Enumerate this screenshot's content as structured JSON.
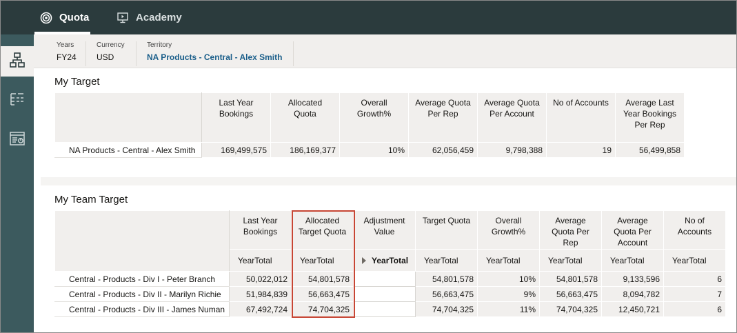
{
  "nav": {
    "tabs": [
      {
        "label": "Quota",
        "icon": "target-icon",
        "active": true
      },
      {
        "label": "Academy",
        "icon": "presentation-icon",
        "active": false
      }
    ]
  },
  "rail": {
    "items": [
      {
        "icon": "hierarchy-icon",
        "selected": true
      },
      {
        "icon": "list-tree-icon",
        "selected": false
      },
      {
        "icon": "report-icon",
        "selected": false
      }
    ]
  },
  "context": {
    "years": {
      "label": "Years",
      "value": "FY24"
    },
    "currency": {
      "label": "Currency",
      "value": "USD"
    },
    "territory": {
      "label": "Territory",
      "value": "NA Products - Central - Alex Smith"
    }
  },
  "my_target": {
    "title": "My Target",
    "columns": [
      "Last Year Bookings",
      "Allocated Quota",
      "Overall Growth%",
      "Average Quota Per Rep",
      "Average Quota Per Account",
      "No of Accounts",
      "Average Last Year Bookings Per Rep"
    ],
    "rows": [
      {
        "label": "NA Products - Central - Alex Smith",
        "values": [
          "169,499,575",
          "186,169,377",
          "10%",
          "62,056,459",
          "9,798,388",
          "19",
          "56,499,858"
        ]
      }
    ]
  },
  "team_target": {
    "title": "My Team Target",
    "columns": [
      "Last Year Bookings",
      "Allocated Target Quota",
      "Adjustment Value",
      "Target Quota",
      "Overall Growth%",
      "Average Quota Per Rep",
      "Average Quota Per Account",
      "No of Accounts"
    ],
    "subheaders": [
      "YearTotal",
      "YearTotal",
      "YearTotal",
      "YearTotal",
      "YearTotal",
      "YearTotal",
      "YearTotal",
      "YearTotal"
    ],
    "rows": [
      {
        "label": "Central - Products - Div I - Peter Branch",
        "values": [
          "50,022,012",
          "54,801,578",
          "",
          "54,801,578",
          "10%",
          "54,801,578",
          "9,133,596",
          "6"
        ]
      },
      {
        "label": "Central - Products - Div II - Marilyn Richie",
        "values": [
          "51,984,839",
          "56,663,475",
          "",
          "56,663,475",
          "9%",
          "56,663,475",
          "8,094,782",
          "7"
        ]
      },
      {
        "label": "Central - Products - Div III - James Numan",
        "values": [
          "67,492,724",
          "74,704,325",
          "",
          "74,704,325",
          "11%",
          "74,704,325",
          "12,450,721",
          "6"
        ]
      }
    ]
  },
  "colors": {
    "topbar": "#2b3b3d",
    "rail": "#3c5a5e",
    "highlight": "#c74634",
    "link": "#1a5e8a"
  }
}
